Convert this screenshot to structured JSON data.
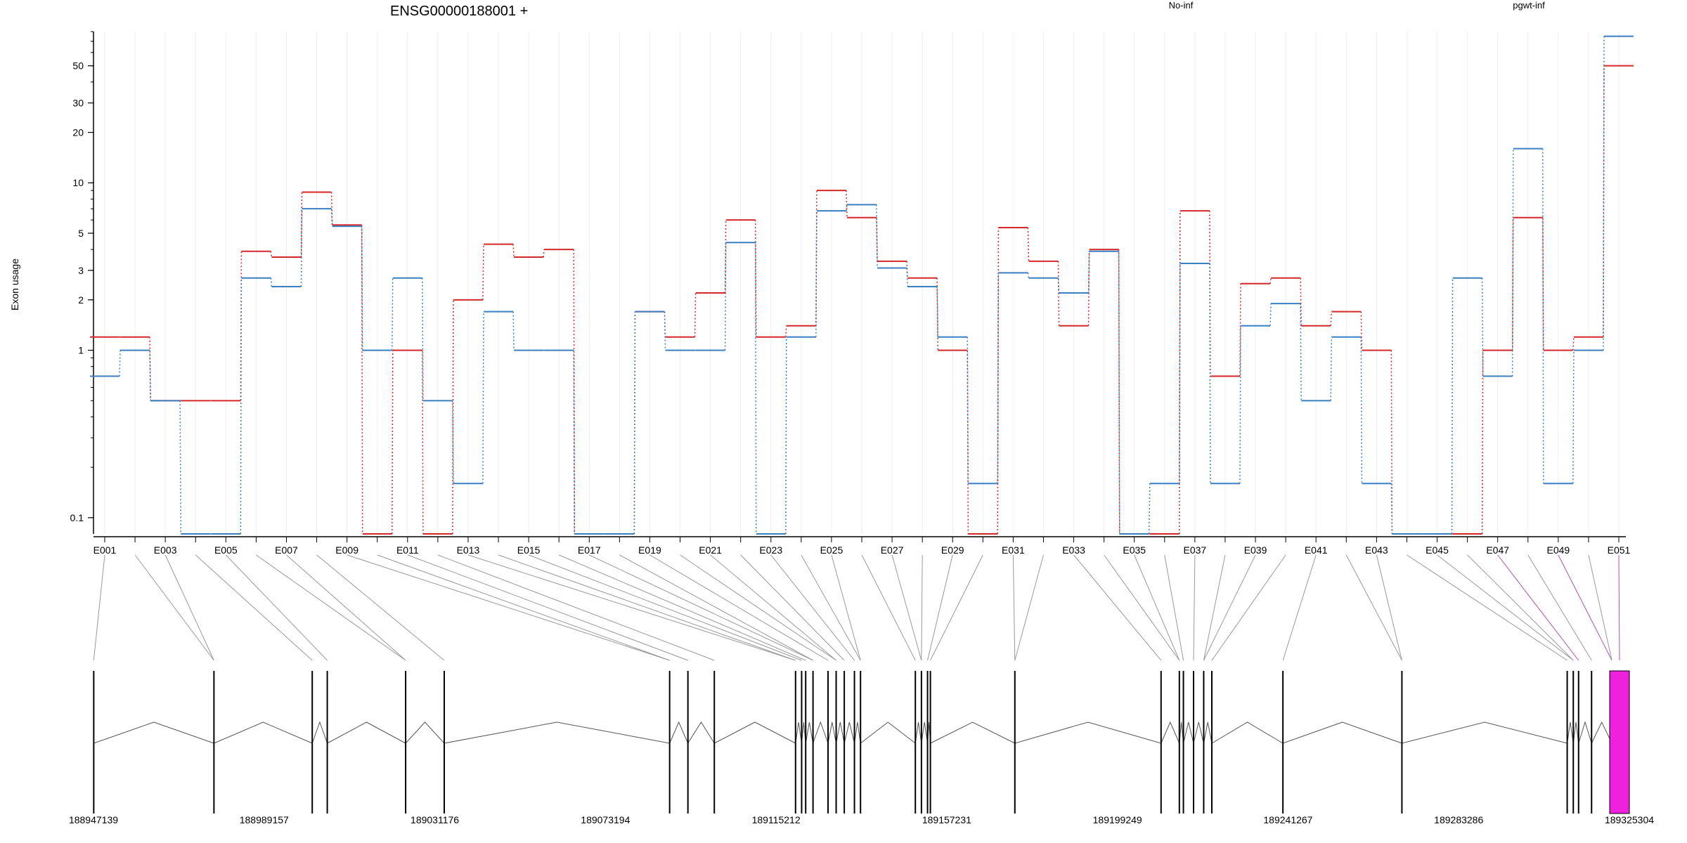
{
  "chart_data": {
    "type": "line",
    "title": "ENSG00000188001 +",
    "ylabel": "Exon usage",
    "y_scale": "log",
    "ylim": [
      0.08,
      80
    ],
    "y_ticks": [
      {
        "value": 0.1,
        "label": "0.1"
      },
      {
        "value": 1,
        "label": "1"
      },
      {
        "value": 2,
        "label": "2"
      },
      {
        "value": 3,
        "label": "3"
      },
      {
        "value": 5,
        "label": "5"
      },
      {
        "value": 10,
        "label": "10"
      },
      {
        "value": 20,
        "label": "20"
      },
      {
        "value": 30,
        "label": "30"
      },
      {
        "value": 50,
        "label": "50"
      }
    ],
    "grid": "vertical-light",
    "legend_position": "top",
    "exons": [
      "E001",
      "E002",
      "E003",
      "E004",
      "E005",
      "E006",
      "E007",
      "E008",
      "E009",
      "E010",
      "E011",
      "E012",
      "E013",
      "E014",
      "E015",
      "E016",
      "E017",
      "E018",
      "E019",
      "E020",
      "E021",
      "E022",
      "E023",
      "E024",
      "E025",
      "E026",
      "E027",
      "E028",
      "E029",
      "E030",
      "E031",
      "E032",
      "E033",
      "E034",
      "E035",
      "E036",
      "E037",
      "E038",
      "E039",
      "E040",
      "E041",
      "E042",
      "E043",
      "E044",
      "E045",
      "E046",
      "E047",
      "E048",
      "E049",
      "E050",
      "E051"
    ],
    "x_tick_labels": [
      "E001",
      "E003",
      "E005",
      "E007",
      "E009",
      "E011",
      "E013",
      "E015",
      "E017",
      "E019",
      "E021",
      "E023",
      "E025",
      "E027",
      "E029",
      "E031",
      "E033",
      "E035",
      "E037",
      "E039",
      "E041",
      "E043",
      "E045",
      "E047",
      "E049",
      "E051"
    ],
    "series": [
      {
        "name": "No-inf",
        "color": "#d62728",
        "values": [
          1.2,
          1.2,
          0.5,
          0.5,
          0.5,
          3.9,
          3.6,
          8.8,
          5.6,
          0.08,
          1.0,
          0.08,
          2.0,
          4.3,
          3.6,
          4.0,
          0.08,
          0.08,
          1.7,
          1.2,
          2.2,
          6.0,
          1.2,
          1.4,
          9.0,
          6.2,
          3.4,
          2.7,
          1.0,
          0.08,
          5.4,
          3.4,
          1.4,
          4.0,
          0.08,
          0.08,
          6.8,
          0.7,
          2.5,
          2.7,
          1.4,
          1.7,
          1.0,
          0.08,
          0.08,
          0.08,
          1.0,
          6.2,
          1.0,
          1.2,
          50
        ]
      },
      {
        "name": "pgwt-inf",
        "color": "#3a7fc4",
        "values": [
          0.7,
          1.0,
          0.5,
          0.08,
          0.08,
          2.7,
          2.4,
          7.0,
          5.5,
          1.0,
          2.7,
          0.5,
          0.16,
          1.7,
          1.0,
          1.0,
          0.08,
          0.08,
          1.7,
          1.0,
          1.0,
          4.4,
          0.08,
          1.2,
          6.8,
          7.4,
          3.1,
          2.4,
          1.2,
          0.16,
          2.9,
          2.7,
          2.2,
          3.9,
          0.08,
          0.16,
          3.3,
          0.16,
          1.4,
          1.9,
          0.5,
          1.2,
          0.16,
          0.08,
          0.08,
          2.7,
          0.7,
          16,
          0.16,
          1.0,
          75
        ]
      }
    ],
    "gene_model": {
      "start": 188947139,
      "end": 189325304,
      "coordinate_ticks": [
        "188947139",
        "188989157",
        "189031176",
        "189073194",
        "189115212",
        "189157231",
        "189199249",
        "189241267",
        "189283286",
        "189325304"
      ],
      "highlight_color": "#ee22dd",
      "exon_positions": [
        188947200,
        188976800,
        189001000,
        189004700,
        189024000,
        189033500,
        189089000,
        189093500,
        189100000,
        189120000,
        189121500,
        189122500,
        189124300,
        189128000,
        189130000,
        189132000,
        189134500,
        189136000,
        189149500,
        189151000,
        189152500,
        189153200,
        189174000,
        189210000,
        189214500,
        189215500,
        189218000,
        189220500,
        189222500,
        189240000,
        189269300,
        189310000,
        189311500,
        189312800,
        189316000,
        189321000
      ]
    }
  }
}
